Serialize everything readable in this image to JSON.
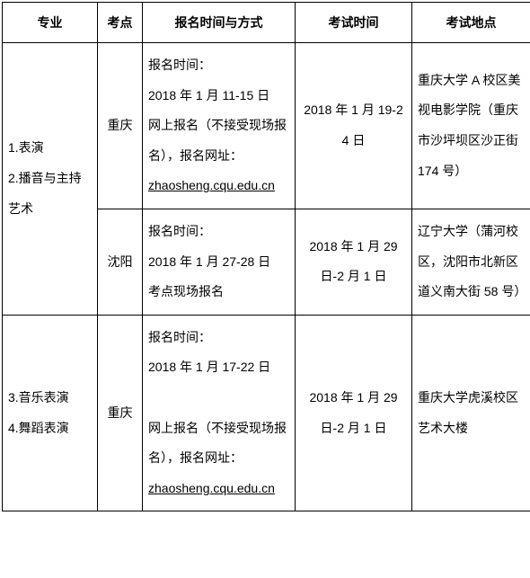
{
  "headers": {
    "major": "专业",
    "site": "考点",
    "registration": "报名时间与方式",
    "exam_time": "考试时间",
    "exam_location": "考试地点"
  },
  "rows": [
    {
      "major": "1.表演\n2.播音与主持艺术",
      "site": "重庆",
      "registration": "报名时间：\n2018 年 1 月 11-15 日\n网上报名（不接受现场报名），报名网址：",
      "registration_url": "zhaosheng.cqu.edu.cn",
      "exam_time": "2018 年 1 月 19-24 日",
      "exam_location": "重庆大学 A 校区美视电影学院（重庆市沙坪坝区沙正街 174 号）"
    },
    {
      "site": "沈阳",
      "registration": "报名时间：\n2018 年 1 月 27-28 日\n考点现场报名",
      "exam_time": "2018 年 1 月 29 日-2 月 1 日",
      "exam_location": "辽宁大学（蒲河校区，沈阳市北新区道义南大街 58 号）"
    },
    {
      "major": "3.音乐表演\n4.舞蹈表演",
      "site": "重庆",
      "registration": "报名时间：\n2018 年 1 月 17-22 日\n\n网上报名（不接受现场报名），报名网址：",
      "registration_url": "zhaosheng.cqu.edu.cn",
      "exam_time": "2018 年 1 月 29 日-2 月 1 日",
      "exam_location": "重庆大学虎溪校区艺术大楼"
    }
  ]
}
